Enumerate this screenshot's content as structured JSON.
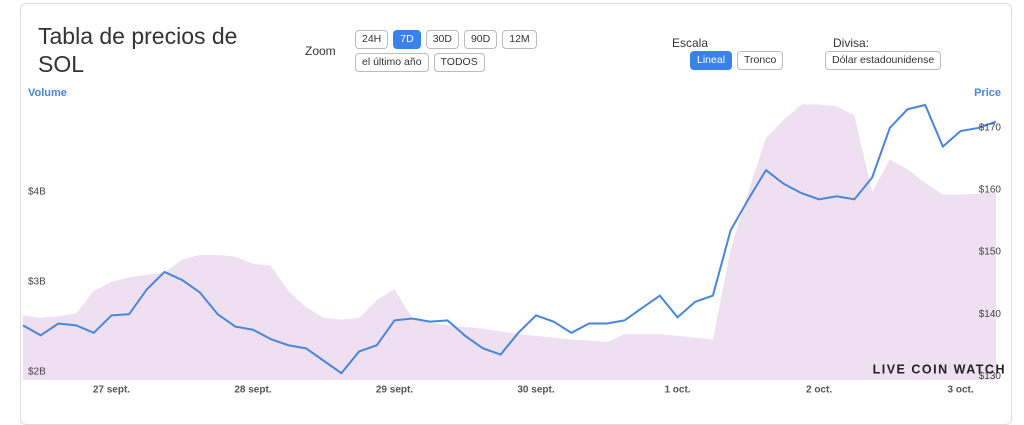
{
  "header": {
    "title": "Tabla de precios de SOL",
    "zoom_label": "Zoom",
    "zoom_buttons": [
      "24H",
      "7D",
      "30D",
      "90D",
      "12M",
      "el último año",
      "TODOS"
    ],
    "zoom_active": 1,
    "scale_label": "Escala",
    "scale_buttons": [
      "Lineal",
      "Tronco"
    ],
    "scale_active": 0,
    "currency_label": "Divisa:",
    "currency": "Dólar estadounidense"
  },
  "watermark": "LIVE COIN WATCH",
  "chart_data": {
    "type": "line",
    "y_label": "Volume",
    "y2_label": "Price",
    "categories": [
      null,
      null,
      null,
      null,
      null,
      "27 sept.",
      null,
      null,
      null,
      null,
      null,
      null,
      null,
      "28 sept.",
      null,
      null,
      null,
      null,
      null,
      null,
      null,
      "29 sept.",
      null,
      null,
      null,
      null,
      null,
      null,
      null,
      "30 sept.",
      null,
      null,
      null,
      null,
      null,
      null,
      null,
      "1 oct.",
      null,
      null,
      null,
      null,
      null,
      null,
      null,
      "2 oct.",
      null,
      null,
      null,
      null,
      null,
      null,
      null,
      "3 oct.",
      null,
      null
    ],
    "series": [
      {
        "name": "Volume",
        "type": "area",
        "color": "#eee0f1",
        "axis": "y",
        "values": [
          2.63,
          2.6,
          2.62,
          2.65,
          2.9,
          3.0,
          3.05,
          3.08,
          3.1,
          3.25,
          3.3,
          3.3,
          3.28,
          3.2,
          3.18,
          2.9,
          2.72,
          2.6,
          2.58,
          2.6,
          2.8,
          2.92,
          2.6,
          2.55,
          2.52,
          2.5,
          2.48,
          2.45,
          2.42,
          2.4,
          2.38,
          2.36,
          2.35,
          2.33,
          2.42,
          2.42,
          2.42,
          2.4,
          2.38,
          2.36,
          3.36,
          4.0,
          4.6,
          4.8,
          4.97,
          4.97,
          4.95,
          4.85,
          4.0,
          4.36,
          4.25,
          4.1,
          3.97,
          3.97,
          3.98,
          4.0
        ]
      },
      {
        "name": "Price",
        "type": "line",
        "color": "#4a86d8",
        "axis": "y2",
        "values": [
          138.2,
          136.6,
          138.5,
          138.2,
          137,
          139.8,
          140,
          144,
          146.8,
          145.5,
          143.5,
          140,
          138,
          137.5,
          136,
          135,
          134.5,
          132.5,
          130.5,
          134,
          135,
          139,
          139.3,
          138.8,
          139,
          136.5,
          134.5,
          133.5,
          137,
          139.8,
          138.8,
          137,
          138.5,
          138.5,
          139,
          141,
          143,
          139.5,
          142,
          143,
          153.5,
          158.5,
          163.2,
          161,
          159.5,
          158.5,
          159,
          158.5,
          162,
          170,
          173,
          173.7,
          167,
          169.5,
          170,
          171
        ]
      }
    ],
    "ylim": [
      1.91,
      5.02
    ],
    "yticks": [
      {
        "value": 2,
        "label": "$2B"
      },
      {
        "value": 3,
        "label": "$3B"
      },
      {
        "value": 4,
        "label": "$4B"
      }
    ],
    "y2lim": [
      129.4,
      174.5
    ],
    "y2ticks": [
      {
        "value": 130,
        "label": "$130"
      },
      {
        "value": 140,
        "label": "$140"
      },
      {
        "value": 150,
        "label": "$150"
      },
      {
        "value": 160,
        "label": "$160"
      },
      {
        "value": 170,
        "label": "$170"
      }
    ]
  }
}
